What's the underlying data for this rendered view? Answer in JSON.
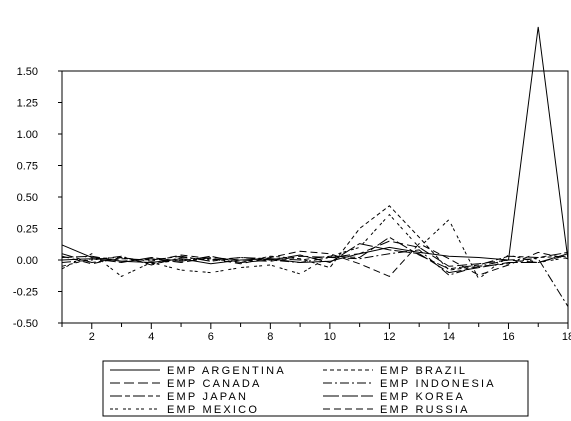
{
  "chart_data": {
    "type": "line",
    "x": [
      1,
      2,
      3,
      4,
      5,
      6,
      7,
      8,
      9,
      10,
      11,
      12,
      13,
      14,
      15,
      16,
      17,
      18
    ],
    "xticks": [
      2,
      4,
      6,
      8,
      10,
      12,
      14,
      16,
      18
    ],
    "ylim": [
      -0.5,
      1.5
    ],
    "yticks": [
      -0.5,
      -0.25,
      0.0,
      0.25,
      0.5,
      0.75,
      1.0,
      1.25,
      1.5
    ],
    "ytick_labels": [
      "-0.50",
      "-0.25",
      "0.00",
      "0.25",
      "0.50",
      "0.75",
      "1.00",
      "1.25",
      "1.50"
    ],
    "grid": false,
    "legend_position": "bottom",
    "series": [
      {
        "name": "EMP ARGENTINA",
        "dash": "solid",
        "values": [
          0.12,
          0.02,
          -0.01,
          -0.02,
          0.01,
          -0.03,
          0.0,
          0.01,
          -0.02,
          -0.01,
          0.05,
          0.1,
          0.06,
          0.03,
          0.02,
          0.0,
          1.85,
          0.0
        ]
      },
      {
        "name": "EMP BRAZIL",
        "dash": "short-dash",
        "values": [
          -0.05,
          0.01,
          0.02,
          -0.03,
          0.0,
          0.01,
          -0.02,
          0.03,
          0.01,
          -0.06,
          0.25,
          0.43,
          0.18,
          -0.08,
          -0.05,
          -0.03,
          0.02,
          0.03
        ]
      },
      {
        "name": "EMP CANADA",
        "dash": "long-dash",
        "values": [
          0.02,
          0.03,
          -0.01,
          0.01,
          -0.02,
          0.02,
          0.0,
          -0.01,
          0.03,
          0.02,
          0.05,
          0.15,
          0.1,
          -0.05,
          -0.03,
          0.0,
          -0.02,
          0.04
        ]
      },
      {
        "name": "EMP INDONESIA",
        "dash": "dash-dot",
        "values": [
          -0.02,
          0.0,
          0.03,
          -0.04,
          0.02,
          0.0,
          0.02,
          0.0,
          -0.02,
          0.02,
          0.01,
          0.05,
          0.08,
          -0.12,
          -0.05,
          0.0,
          0.01,
          -0.37
        ]
      },
      {
        "name": "EMP JAPAN",
        "dash": "long-dash-short",
        "values": [
          0.05,
          -0.02,
          0.01,
          0.0,
          0.03,
          -0.01,
          0.02,
          0.01,
          0.0,
          0.03,
          0.02,
          0.18,
          0.04,
          -0.07,
          -0.04,
          0.03,
          0.02,
          0.06
        ]
      },
      {
        "name": "EMP KOREA",
        "dash": "long",
        "values": [
          0.0,
          0.01,
          -0.02,
          0.02,
          -0.01,
          0.03,
          -0.02,
          0.0,
          0.04,
          -0.02,
          0.13,
          0.08,
          0.05,
          -0.1,
          -0.06,
          -0.02,
          -0.02,
          0.05
        ]
      },
      {
        "name": "EMP MEXICO",
        "dash": "dotted-dash",
        "values": [
          -0.07,
          0.05,
          -0.13,
          -0.02,
          -0.08,
          -0.1,
          -0.06,
          -0.04,
          -0.11,
          0.03,
          0.1,
          0.36,
          0.1,
          0.32,
          -0.15,
          0.04,
          -0.02,
          0.02
        ]
      },
      {
        "name": "EMP RUSSIA",
        "dash": "medium-dash",
        "values": [
          0.03,
          -0.03,
          0.02,
          -0.01,
          0.04,
          0.01,
          -0.03,
          0.02,
          0.07,
          0.05,
          -0.03,
          -0.13,
          0.13,
          0.01,
          -0.12,
          -0.04,
          0.06,
          0.01
        ]
      }
    ]
  }
}
